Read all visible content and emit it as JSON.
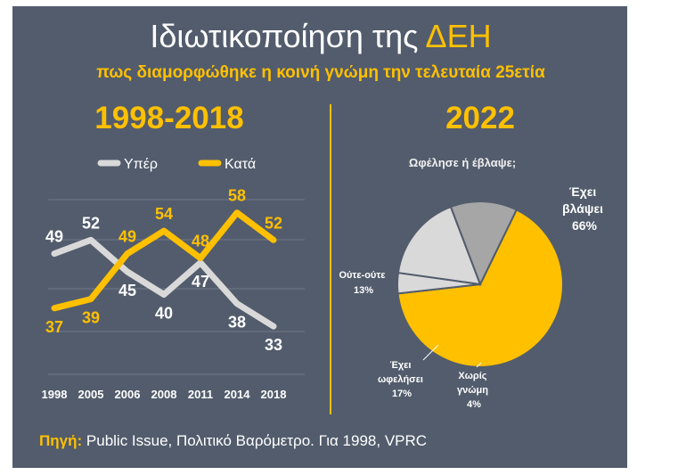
{
  "header": {
    "title_main": "Ιδιωτικοποίηση της ",
    "title_accent": "ΔΕΗ",
    "subtitle": "πως διαμορφώθηκε η κοινή γνώμη την τελευταία 25ετία"
  },
  "left_period": "1998-2018",
  "right_period": "2022",
  "colors": {
    "background": "#525c6c",
    "yper": "#d9d9d9",
    "kata": "#ffc000",
    "pie_neither": "#a6a6a6"
  },
  "chart_data": [
    {
      "type": "line",
      "categories": [
        "1998",
        "2005",
        "2006",
        "2008",
        "2011",
        "2014",
        "2018"
      ],
      "series": [
        {
          "name": "Υπέρ",
          "values": [
            49,
            52,
            45,
            40,
            47,
            38,
            33
          ]
        },
        {
          "name": "Κατά",
          "values": [
            37,
            39,
            49,
            54,
            48,
            58,
            52
          ]
        }
      ],
      "grid": true,
      "legend": "top"
    },
    {
      "type": "pie",
      "title": "Ωφέλησε ή έβλαψε;",
      "slices": [
        {
          "label": "Έχει βλάψει",
          "value": 66
        },
        {
          "label": "Χωρίς γνώμη",
          "value": 4
        },
        {
          "label": "Έχει ωφελήσει",
          "value": 17
        },
        {
          "label": "Ούτε-ούτε",
          "value": 13
        }
      ]
    }
  ],
  "pie_labels": {
    "harmed": [
      "Έχει",
      "βλάψει",
      "66%"
    ],
    "no_opinion": [
      "Χωρίς",
      "γνώμη",
      "4%"
    ],
    "benefited": [
      "Έχει",
      "ωφελήσει",
      "17%"
    ],
    "neither": [
      "Ούτε-ούτε",
      "13%"
    ]
  },
  "source": {
    "label": "Πηγή:",
    "text": " Public Issue, Πολιτικό Βαρόμετρο. Για 1998, VPRC"
  }
}
